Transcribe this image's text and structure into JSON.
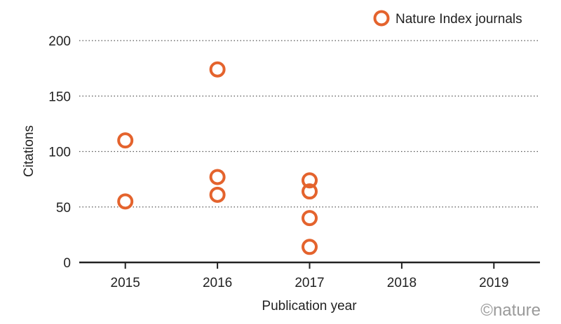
{
  "chart_data": {
    "type": "scatter",
    "xlabel": "Publication year",
    "ylabel": "Citations",
    "x_ticks": [
      "2015",
      "2016",
      "2017",
      "2018",
      "2019"
    ],
    "y_ticks": [
      "0",
      "50",
      "100",
      "150",
      "200"
    ],
    "xlim": [
      2014.5,
      2019.5
    ],
    "ylim": [
      0,
      200
    ],
    "grid": "horizontal dotted",
    "legend_position": "top-right",
    "series": [
      {
        "name": "Nature Index journals",
        "color": "#E4632D",
        "marker": "open-circle",
        "points": [
          {
            "x": 2015,
            "y": 110
          },
          {
            "x": 2015,
            "y": 55
          },
          {
            "x": 2016,
            "y": 174
          },
          {
            "x": 2016,
            "y": 77
          },
          {
            "x": 2016,
            "y": 61
          },
          {
            "x": 2017,
            "y": 74
          },
          {
            "x": 2017,
            "y": 64
          },
          {
            "x": 2017,
            "y": 40
          },
          {
            "x": 2017,
            "y": 14
          }
        ]
      }
    ]
  },
  "credit": "©nature"
}
